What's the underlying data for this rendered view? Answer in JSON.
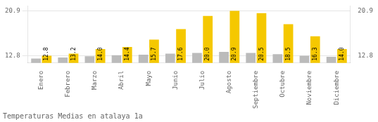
{
  "chart_data": {
    "type": "bar",
    "title": "Temperaturas Medias en atalaya 1a",
    "categories": [
      "Enero",
      "Febrero",
      "Marzo",
      "Abril",
      "Mayo",
      "Junio",
      "Julio",
      "Agosto",
      "Septiembre",
      "Octubre",
      "Noviembre",
      "Diciembre"
    ],
    "series": [
      {
        "color": "#BBBBBB",
        "values": [
          12.3,
          12.5,
          12.7,
          12.9,
          13.0,
          13.2,
          13.3,
          13.5,
          13.3,
          13.1,
          12.8,
          12.6
        ]
      },
      {
        "color": "#F5C800",
        "values": [
          12.8,
          13.2,
          14.0,
          14.4,
          15.7,
          17.6,
          20.0,
          20.9,
          20.5,
          18.5,
          16.3,
          14.0
        ],
        "value_labels": [
          "12.8",
          "13.2",
          "14.0",
          "14.4",
          "15.7",
          "17.6",
          "20.0",
          "20.9",
          "20.5",
          "18.5",
          "16.3",
          "14.0"
        ],
        "data_labels": true
      }
    ],
    "ylim": [
      11.5,
      21.8
    ],
    "yticks": [
      12.8,
      20.9
    ],
    "y2lim": [
      11.5,
      21.8
    ],
    "y2ticks": [
      12.8,
      20.9
    ],
    "grid": true
  }
}
